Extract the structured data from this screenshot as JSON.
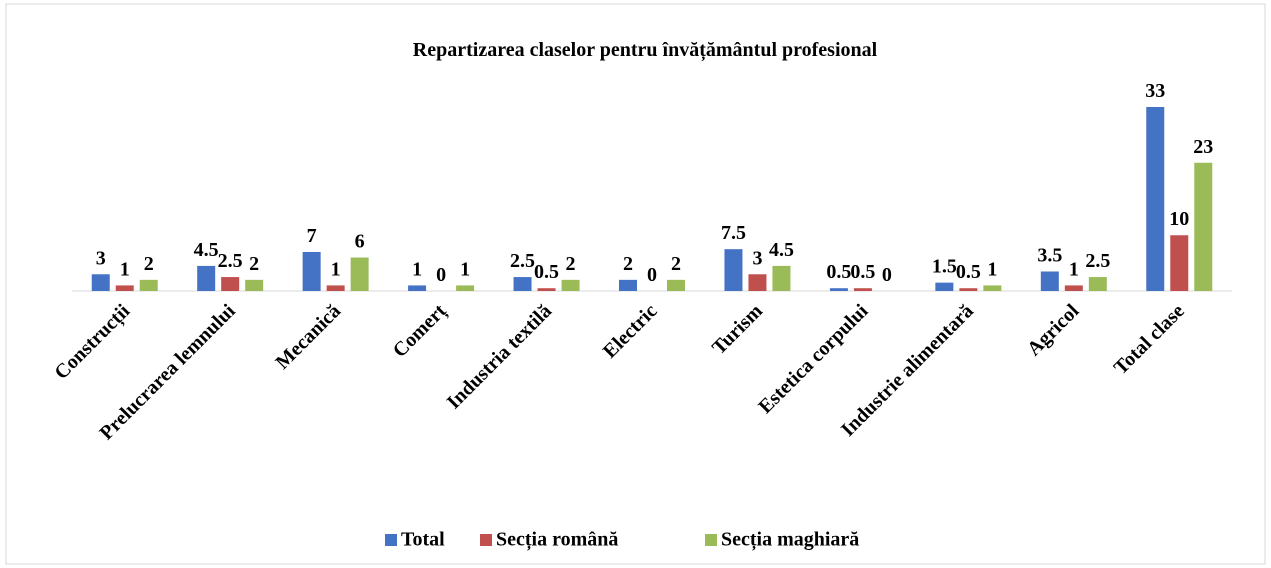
{
  "chart_data": {
    "type": "bar",
    "title": "Repartizarea claselor pentru învățământul profesional",
    "categories": [
      "Construcții",
      "Prelucrarea lemnului",
      "Mecanică",
      "Comerț",
      "Industria textilă",
      "Electric",
      "Turism",
      "Estetica corpului",
      "Industrie alimentară",
      "Agricol",
      "Total clase"
    ],
    "series": [
      {
        "name": "Total",
        "color": "#4472c4",
        "values": [
          3,
          4.5,
          7,
          1,
          2.5,
          2,
          7.5,
          0.5,
          1.5,
          3.5,
          33
        ]
      },
      {
        "name": "Secția română",
        "color": "#c0504d",
        "values": [
          1,
          2.5,
          1,
          0,
          0.5,
          0,
          3,
          0.5,
          0.5,
          1,
          10
        ]
      },
      {
        "name": "Secția maghiară",
        "color": "#9bbb59",
        "values": [
          2,
          2,
          6,
          1,
          2,
          2,
          4.5,
          0,
          1,
          2.5,
          23
        ]
      }
    ],
    "legend": "bottom"
  }
}
